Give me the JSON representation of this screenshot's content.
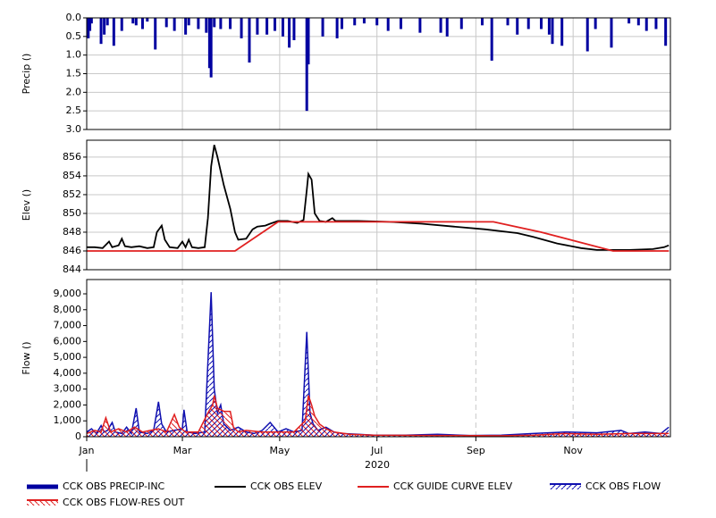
{
  "chart_data": [
    {
      "type": "bar",
      "ylabel": "Precip ()",
      "ylim": [
        0,
        3
      ],
      "y_inverted": true,
      "yticks": [
        {
          "value": 0,
          "label": "0.0"
        },
        0.5,
        {
          "value": 1,
          "label": "1.0"
        },
        1.5,
        {
          "value": 2,
          "label": "2.0"
        },
        2.5,
        {
          "value": 3,
          "label": "3.0"
        }
      ],
      "grid": true,
      "series": [
        {
          "name": "CCK OBS PRECIP-INC",
          "color": "#0000a0",
          "x": [
            1,
            2,
            3,
            9,
            11,
            13,
            17,
            22,
            29,
            31,
            35,
            38,
            43,
            50,
            55,
            62,
            64,
            70,
            75,
            77,
            78,
            80,
            84,
            90,
            97,
            102,
            107,
            113,
            118,
            123,
            127,
            130,
            138,
            139,
            148,
            157,
            160,
            168,
            174,
            182,
            189,
            197,
            209,
            222,
            226,
            235,
            248,
            254,
            264,
            270,
            277,
            285,
            290,
            292,
            298,
            314,
            319,
            329,
            340,
            346,
            351,
            357,
            363
          ],
          "values": [
            0.55,
            0.35,
            0.15,
            0.7,
            0.45,
            0.2,
            0.75,
            0.35,
            0.15,
            0.2,
            0.3,
            0.1,
            0.85,
            0.25,
            0.35,
            0.45,
            0.2,
            0.3,
            0.4,
            1.35,
            1.6,
            0.25,
            0.3,
            0.3,
            0.55,
            1.2,
            0.45,
            0.45,
            0.35,
            0.5,
            0.8,
            0.6,
            2.5,
            1.25,
            0.5,
            0.55,
            0.3,
            0.2,
            0.15,
            0.2,
            0.35,
            0.3,
            0.4,
            0.4,
            0.5,
            0.3,
            0.2,
            1.15,
            0.2,
            0.45,
            0.3,
            0.3,
            0.45,
            0.7,
            0.75,
            0.9,
            0.3,
            0.8,
            0.15,
            0.2,
            0.35,
            0.3,
            0.75
          ]
        }
      ]
    },
    {
      "type": "line",
      "ylabel": "Elev ()",
      "ylim": [
        844,
        857.8
      ],
      "yticks": [
        844,
        846,
        848,
        850,
        852,
        854,
        856
      ],
      "grid": true,
      "series": [
        {
          "name": "CCK OBS ELEV",
          "color": "#000000",
          "x": [
            0,
            5,
            10,
            14,
            16,
            20,
            22,
            24,
            28,
            33,
            38,
            42,
            44,
            47,
            49,
            52,
            57,
            60,
            62,
            64,
            66,
            70,
            74,
            76,
            78,
            80,
            82,
            86,
            90,
            93,
            95,
            100,
            104,
            107,
            112,
            115,
            120,
            126,
            132,
            136,
            138,
            139,
            141,
            143,
            146,
            150,
            154,
            156,
            170,
            190,
            210,
            230,
            250,
            270,
            280,
            295,
            310,
            320,
            340,
            355,
            362,
            365
          ],
          "values": [
            846.4,
            846.4,
            846.3,
            847.0,
            846.4,
            846.6,
            847.3,
            846.5,
            846.4,
            846.5,
            846.3,
            846.4,
            848.0,
            848.7,
            847.2,
            846.4,
            846.3,
            847.0,
            846.4,
            847.2,
            846.4,
            846.3,
            846.4,
            849.5,
            855.0,
            857.3,
            856.0,
            853.0,
            850.5,
            848.0,
            847.2,
            847.3,
            848.3,
            848.6,
            848.7,
            848.9,
            849.2,
            849.2,
            849.0,
            849.3,
            852.5,
            854.2,
            853.6,
            850.0,
            849.2,
            849.1,
            849.5,
            849.2,
            849.2,
            849.1,
            848.9,
            848.6,
            848.3,
            847.9,
            847.5,
            846.8,
            846.3,
            846.1,
            846.1,
            846.2,
            846.4,
            846.6
          ]
        },
        {
          "name": "CCK GUIDE CURVE ELEV",
          "color": "#e02020",
          "x": [
            0,
            93,
            120,
            255,
            285,
            330,
            365
          ],
          "values": [
            846,
            846,
            849.1,
            849.1,
            848,
            846,
            846
          ]
        }
      ]
    },
    {
      "type": "area",
      "ylabel": "Flow ()",
      "ylim": [
        0,
        9900
      ],
      "yticks": [
        0,
        {
          "value": 1000,
          "label": "1,000"
        },
        {
          "value": 2000,
          "label": "2,000"
        },
        {
          "value": 3000,
          "label": "3,000"
        },
        {
          "value": 4000,
          "label": "4,000"
        },
        {
          "value": 5000,
          "label": "5,000"
        },
        {
          "value": 6000,
          "label": "6,000"
        },
        {
          "value": 7000,
          "label": "7,000"
        },
        {
          "value": 8000,
          "label": "8,000"
        },
        {
          "value": 9000,
          "label": "9,000"
        }
      ],
      "grid": "dashed",
      "xlim": [
        0,
        366
      ],
      "xlabel": "2020",
      "xticks": [
        {
          "value": 0,
          "label": "Jan"
        },
        {
          "value": 60,
          "label": "Mar"
        },
        {
          "value": 121,
          "label": "May"
        },
        {
          "value": 182,
          "label": "Jul"
        },
        {
          "value": 244,
          "label": "Sep"
        },
        {
          "value": 305,
          "label": "Nov"
        }
      ],
      "series": [
        {
          "name": "CCK OBS FLOW",
          "color": "#1010b0",
          "x": [
            0,
            3,
            6,
            9,
            11,
            13,
            16,
            18,
            22,
            25,
            28,
            31,
            33,
            38,
            42,
            45,
            47,
            50,
            55,
            60,
            61,
            63,
            68,
            74,
            76,
            78,
            80,
            82,
            84,
            86,
            90,
            95,
            100,
            105,
            110,
            115,
            120,
            125,
            130,
            135,
            138,
            140,
            142,
            145,
            150,
            155,
            160,
            170,
            180,
            200,
            220,
            240,
            260,
            280,
            300,
            320,
            335,
            340,
            350,
            360,
            365
          ],
          "values": [
            300,
            500,
            200,
            700,
            300,
            400,
            900,
            300,
            200,
            600,
            200,
            1800,
            300,
            200,
            400,
            2200,
            800,
            300,
            400,
            500,
            1700,
            300,
            200,
            300,
            4700,
            9100,
            3000,
            1500,
            2000,
            800,
            400,
            600,
            300,
            200,
            400,
            900,
            300,
            500,
            300,
            400,
            6600,
            1500,
            800,
            400,
            600,
            300,
            200,
            150,
            100,
            100,
            150,
            80,
            100,
            200,
            300,
            250,
            400,
            200,
            300,
            200,
            600
          ]
        },
        {
          "name": "CCK OBS FLOW-RES OUT",
          "color": "#e02020",
          "x": [
            0,
            5,
            9,
            12,
            15,
            20,
            25,
            30,
            35,
            40,
            45,
            50,
            55,
            58,
            62,
            70,
            76,
            79,
            80,
            82,
            86,
            90,
            92,
            95,
            100,
            110,
            120,
            130,
            137,
            139,
            141,
            143,
            146,
            150,
            155,
            165,
            180,
            220,
            260,
            280,
            300,
            320,
            340,
            365
          ],
          "values": [
            200,
            400,
            300,
            1200,
            300,
            500,
            300,
            600,
            300,
            400,
            500,
            300,
            1400,
            600,
            300,
            300,
            1500,
            2000,
            2600,
            1800,
            1600,
            1600,
            600,
            300,
            400,
            300,
            300,
            300,
            1000,
            2600,
            2000,
            1300,
            800,
            500,
            300,
            150,
            100,
            80,
            60,
            100,
            200,
            150,
            200,
            200
          ]
        }
      ]
    }
  ]
}
